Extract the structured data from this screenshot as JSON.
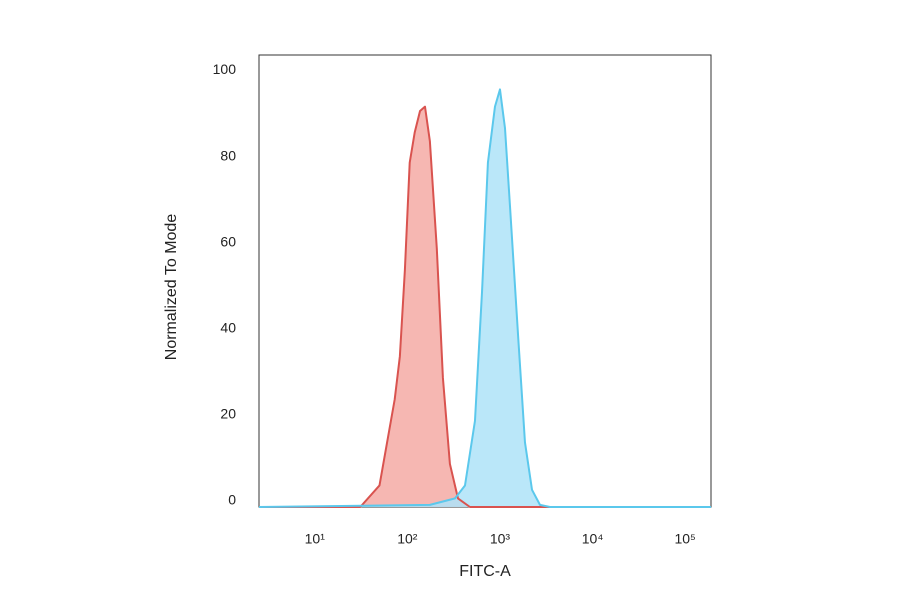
{
  "chart_data": {
    "type": "histogram-overlay",
    "x_label": "FITC-A",
    "y_label": "Normalized To Mode",
    "xscale": "log",
    "xlim": [
      2.5,
      190000
    ],
    "ylim": [
      0,
      105
    ],
    "xticks": [
      {
        "value": 10,
        "label": "10¹"
      },
      {
        "value": 100,
        "label": "10²"
      },
      {
        "value": 1000,
        "label": "10³"
      },
      {
        "value": 10000,
        "label": "10⁴"
      },
      {
        "value": 100000,
        "label": "10⁵"
      }
    ],
    "yticks": [
      0,
      20,
      40,
      60,
      80,
      100
    ],
    "grid": false,
    "series": [
      {
        "color": "#d9534f",
        "fill": "#f4aaa4",
        "x": [
          2.5,
          31,
          50,
          73,
          83,
          94,
          106,
          120,
          137,
          155,
          175,
          208,
          242,
          288,
          352,
          474,
          190000
        ],
        "values": [
          0,
          0,
          5,
          25,
          35,
          55,
          80,
          87,
          92,
          93,
          85,
          60,
          30,
          10,
          2,
          0,
          0
        ]
      },
      {
        "color": "#5bc8ec",
        "fill": "#aee3f8",
        "x": [
          2.5,
          175,
          327,
          419,
          537,
          640,
          741,
          883,
          1000,
          1133,
          1282,
          1567,
          1862,
          2218,
          2704,
          3467,
          190000
        ],
        "values": [
          0,
          0.5,
          2,
          5,
          20,
          50,
          80,
          93,
          97,
          88,
          70,
          40,
          15,
          4,
          0.5,
          0,
          0
        ]
      }
    ]
  }
}
